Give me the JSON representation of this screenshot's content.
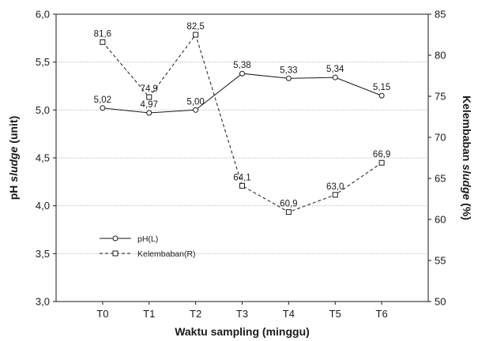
{
  "chart_data": {
    "type": "line",
    "categories": [
      "T0",
      "T1",
      "T2",
      "T3",
      "T4",
      "T5",
      "T6"
    ],
    "xlabel": "Waktu sampling (minggu)",
    "ylabel_left": {
      "prefix": "pH ",
      "italic": "sludge",
      "suffix": " (unit)"
    },
    "ylabel_right": {
      "prefix": "Kelembaban ",
      "italic": "sludge",
      "suffix": " (%)"
    },
    "ylim_left": [
      3.0,
      6.0
    ],
    "ylim_right": [
      50,
      85
    ],
    "yticks_left": [
      "3,0",
      "3,5",
      "4,0",
      "4,5",
      "5,0",
      "5,5",
      "6,0"
    ],
    "yticks_right": [
      "50",
      "55",
      "60",
      "65",
      "70",
      "75",
      "80",
      "85"
    ],
    "grid": "horizontal",
    "legend_position": "left",
    "series": [
      {
        "name": "pH(L)",
        "axis": "left",
        "marker": "circle",
        "line": "solid",
        "values": [
          5.02,
          4.97,
          5.0,
          5.38,
          5.33,
          5.34,
          5.15
        ],
        "labels": [
          "5,02",
          "4,97",
          "5,00",
          "5,38",
          "5,33",
          "5,34",
          "5,15"
        ]
      },
      {
        "name": "Kelembaban(R)",
        "axis": "right",
        "marker": "square",
        "line": "dashed",
        "values": [
          81.6,
          74.9,
          82.5,
          64.1,
          60.9,
          63.0,
          66.9
        ],
        "labels": [
          "81,6",
          "74,9",
          "82,5",
          "64,1",
          "60,9",
          "63,0",
          "66,9"
        ]
      }
    ],
    "colors": {
      "line": "#1a1a1a",
      "grid": "#bdbdbd",
      "frame": "#1a1a1a",
      "background": "#ffffff"
    }
  }
}
